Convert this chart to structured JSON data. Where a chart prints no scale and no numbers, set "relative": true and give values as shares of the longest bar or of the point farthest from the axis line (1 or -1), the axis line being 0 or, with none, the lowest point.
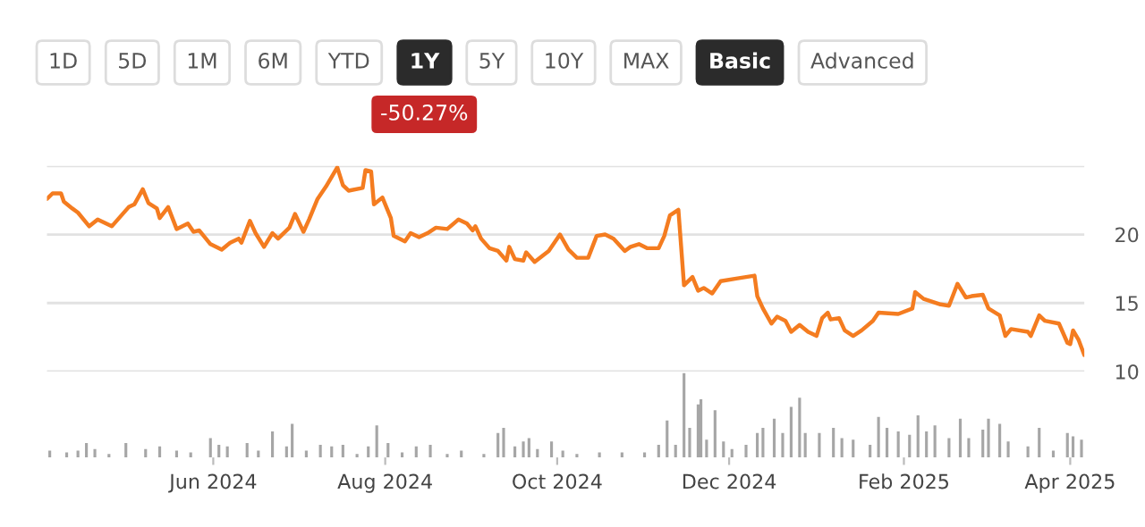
{
  "chart_data": [
    {
      "type": "line",
      "color": "#f47c20",
      "grid": "y",
      "tick_labels": "y",
      "annotations": [
        "1D",
        "5D",
        "1M",
        "6M",
        "YTD",
        "1Y",
        "5Y",
        "10Y",
        "MAX",
        "Basic",
        "Advanced",
        "-50.27%"
      ],
      "xlim": [
        "2024-04-03",
        "2025-04-06"
      ],
      "ylim": [
        10,
        25
      ],
      "yticks": [
        10,
        15,
        20,
        {
          "value": 25,
          "label": null
        }
      ],
      "x": [
        "2024-04-03",
        "2024-04-05",
        "2024-04-08",
        "2024-04-09",
        "2024-04-12",
        "2024-04-14",
        "2024-04-18",
        "2024-04-21",
        "2024-04-26",
        "2024-04-29",
        "2024-05-02",
        "2024-05-04",
        "2024-05-07",
        "2024-05-09",
        "2024-05-12",
        "2024-05-13",
        "2024-05-16",
        "2024-05-19",
        "2024-05-23",
        "2024-05-25",
        "2024-05-27",
        "2024-05-31",
        "2024-06-04",
        "2024-06-07",
        "2024-06-10",
        "2024-06-11",
        "2024-06-14",
        "2024-06-16",
        "2024-06-19",
        "2024-06-22",
        "2024-06-24",
        "2024-06-28",
        "2024-06-30",
        "2024-07-03",
        "2024-07-05",
        "2024-07-08",
        "2024-07-11",
        "2024-07-15",
        "2024-07-17",
        "2024-07-19",
        "2024-07-24",
        "2024-07-25",
        "2024-07-27",
        "2024-07-28",
        "2024-07-31",
        "2024-08-03",
        "2024-08-04",
        "2024-08-08",
        "2024-08-10",
        "2024-08-13",
        "2024-08-16",
        "2024-08-19",
        "2024-08-23",
        "2024-08-27",
        "2024-08-30",
        "2024-09-01",
        "2024-09-02",
        "2024-09-04",
        "2024-09-07",
        "2024-09-10",
        "2024-09-13",
        "2024-09-14",
        "2024-09-16",
        "2024-09-19",
        "2024-09-20",
        "2024-09-23",
        "2024-09-28",
        "2024-10-02",
        "2024-10-05",
        "2024-10-08",
        "2024-10-12",
        "2024-10-15",
        "2024-10-18",
        "2024-10-21",
        "2024-10-25",
        "2024-10-27",
        "2024-10-30",
        "2024-11-02",
        "2024-11-06",
        "2024-11-08",
        "2024-11-10",
        "2024-11-13",
        "2024-11-15",
        "2024-11-18",
        "2024-11-20",
        "2024-11-22",
        "2024-11-25",
        "2024-11-28",
        "2024-12-04",
        "2024-12-10",
        "2024-12-11",
        "2024-12-13",
        "2024-12-16",
        "2024-12-18",
        "2024-12-21",
        "2024-12-23",
        "2024-12-26",
        "2024-12-29",
        "2025-01-01",
        "2025-01-03",
        "2025-01-05",
        "2025-01-06",
        "2025-01-09",
        "2025-01-11",
        "2025-01-14",
        "2025-01-17",
        "2025-01-21",
        "2025-01-23",
        "2025-01-30",
        "2025-02-04",
        "2025-02-05",
        "2025-02-08",
        "2025-02-14",
        "2025-02-17",
        "2025-02-20",
        "2025-02-23",
        "2025-02-25",
        "2025-03-01",
        "2025-03-03",
        "2025-03-07",
        "2025-03-09",
        "2025-03-11",
        "2025-03-17",
        "2025-03-18",
        "2025-03-21",
        "2025-03-23",
        "2025-03-28",
        "2025-03-31",
        "2025-04-01",
        "2025-04-02",
        "2025-04-04",
        "2025-04-06"
      ],
      "values": [
        22.6,
        23.0,
        23.0,
        22.4,
        21.9,
        21.6,
        20.6,
        21.1,
        20.6,
        21.3,
        22.0,
        22.2,
        23.3,
        22.3,
        21.9,
        21.2,
        22.0,
        20.4,
        20.8,
        20.2,
        20.3,
        19.3,
        18.9,
        19.4,
        19.7,
        19.4,
        21.0,
        20.1,
        19.1,
        20.1,
        19.7,
        20.5,
        21.5,
        20.2,
        21.1,
        22.6,
        23.5,
        24.9,
        23.6,
        23.2,
        23.4,
        24.7,
        24.6,
        22.2,
        22.7,
        21.2,
        19.9,
        19.5,
        20.1,
        19.8,
        20.1,
        20.5,
        20.4,
        21.1,
        20.8,
        20.3,
        20.6,
        19.7,
        19.0,
        18.8,
        18.1,
        19.1,
        18.2,
        18.1,
        18.7,
        18.0,
        18.8,
        20.0,
        18.9,
        18.3,
        18.3,
        19.9,
        20.0,
        19.7,
        18.8,
        19.1,
        19.3,
        19.0,
        19.0,
        19.9,
        21.4,
        21.8,
        16.3,
        16.9,
        15.9,
        16.1,
        15.7,
        16.6,
        16.8,
        17.0,
        15.5,
        14.6,
        13.5,
        14.0,
        13.7,
        12.9,
        13.4,
        12.9,
        12.6,
        13.9,
        14.3,
        13.8,
        13.9,
        13.0,
        12.6,
        13.0,
        13.7,
        14.3,
        14.2,
        14.6,
        15.8,
        15.3,
        14.9,
        14.8,
        16.4,
        15.4,
        15.5,
        15.6,
        14.6,
        14.1,
        12.6,
        13.1,
        12.9,
        12.6,
        14.1,
        13.7,
        13.5,
        12.1,
        12.0,
        13.0,
        12.3,
        11.2
      ]
    },
    {
      "type": "bar",
      "color": "#a6a6a6",
      "relative": true,
      "tick_labels": "x",
      "xlim": [
        "2024-04-03",
        "2025-04-06"
      ],
      "xticks": [
        {
          "value": "2024-06-01",
          "label": "Jun 2024"
        },
        {
          "value": "2024-08-01",
          "label": "Aug 2024"
        },
        {
          "value": "2024-10-01",
          "label": "Oct 2024"
        },
        {
          "value": "2024-12-01",
          "label": "Dec 2024"
        },
        {
          "value": "2025-02-01",
          "label": "Feb 2025"
        },
        {
          "value": "2025-04-01",
          "label": "Apr 2025"
        }
      ],
      "x": [
        "2024-04-04",
        "2024-04-10",
        "2024-04-14",
        "2024-04-17",
        "2024-04-20",
        "2024-04-25",
        "2024-05-01",
        "2024-05-08",
        "2024-05-13",
        "2024-05-19",
        "2024-05-24",
        "2024-05-31",
        "2024-06-03",
        "2024-06-06",
        "2024-06-13",
        "2024-06-17",
        "2024-06-22",
        "2024-06-27",
        "2024-06-29",
        "2024-07-04",
        "2024-07-09",
        "2024-07-13",
        "2024-07-17",
        "2024-07-22",
        "2024-07-26",
        "2024-07-29",
        "2024-08-02",
        "2024-08-07",
        "2024-08-12",
        "2024-08-17",
        "2024-08-23",
        "2024-08-28",
        "2024-09-05",
        "2024-09-10",
        "2024-09-12",
        "2024-09-16",
        "2024-09-19",
        "2024-09-21",
        "2024-09-24",
        "2024-09-29",
        "2024-10-03",
        "2024-10-08",
        "2024-10-16",
        "2024-10-24",
        "2024-11-01",
        "2024-11-06",
        "2024-11-09",
        "2024-11-12",
        "2024-11-15",
        "2024-11-17",
        "2024-11-20",
        "2024-11-21",
        "2024-11-23",
        "2024-11-26",
        "2024-11-29",
        "2024-12-02",
        "2024-12-07",
        "2024-12-11",
        "2024-12-13",
        "2024-12-17",
        "2024-12-20",
        "2024-12-23",
        "2024-12-26",
        "2024-12-28",
        "2025-01-02",
        "2025-01-07",
        "2025-01-10",
        "2025-01-14",
        "2025-01-20",
        "2025-01-23",
        "2025-01-26",
        "2025-01-30",
        "2025-02-03",
        "2025-02-06",
        "2025-02-09",
        "2025-02-12",
        "2025-02-17",
        "2025-02-21",
        "2025-02-24",
        "2025-03-01",
        "2025-03-03",
        "2025-03-07",
        "2025-03-10",
        "2025-03-17",
        "2025-03-21",
        "2025-03-26",
        "2025-03-31",
        "2025-04-02",
        "2025-04-05"
      ],
      "values": [
        0.08,
        0.06,
        0.08,
        0.17,
        0.1,
        0.04,
        0.17,
        0.1,
        0.13,
        0.08,
        0.06,
        0.23,
        0.15,
        0.13,
        0.17,
        0.08,
        0.31,
        0.13,
        0.4,
        0.08,
        0.15,
        0.13,
        0.15,
        0.04,
        0.13,
        0.38,
        0.17,
        0.06,
        0.13,
        0.15,
        0.04,
        0.08,
        0.04,
        0.29,
        0.35,
        0.13,
        0.19,
        0.23,
        0.1,
        0.19,
        0.08,
        0.04,
        0.06,
        0.06,
        0.06,
        0.15,
        0.44,
        0.15,
        1,
        0.35,
        0.63,
        0.69,
        0.21,
        0.56,
        0.19,
        0.1,
        0.15,
        0.29,
        0.35,
        0.46,
        0.29,
        0.6,
        0.71,
        0.29,
        0.29,
        0.35,
        0.23,
        0.21,
        0.15,
        0.48,
        0.35,
        0.31,
        0.27,
        0.5,
        0.31,
        0.38,
        0.23,
        0.46,
        0.23,
        0.33,
        0.46,
        0.4,
        0.19,
        0.13,
        0.35,
        0.08,
        0.29,
        0.25,
        0.21
      ]
    }
  ]
}
